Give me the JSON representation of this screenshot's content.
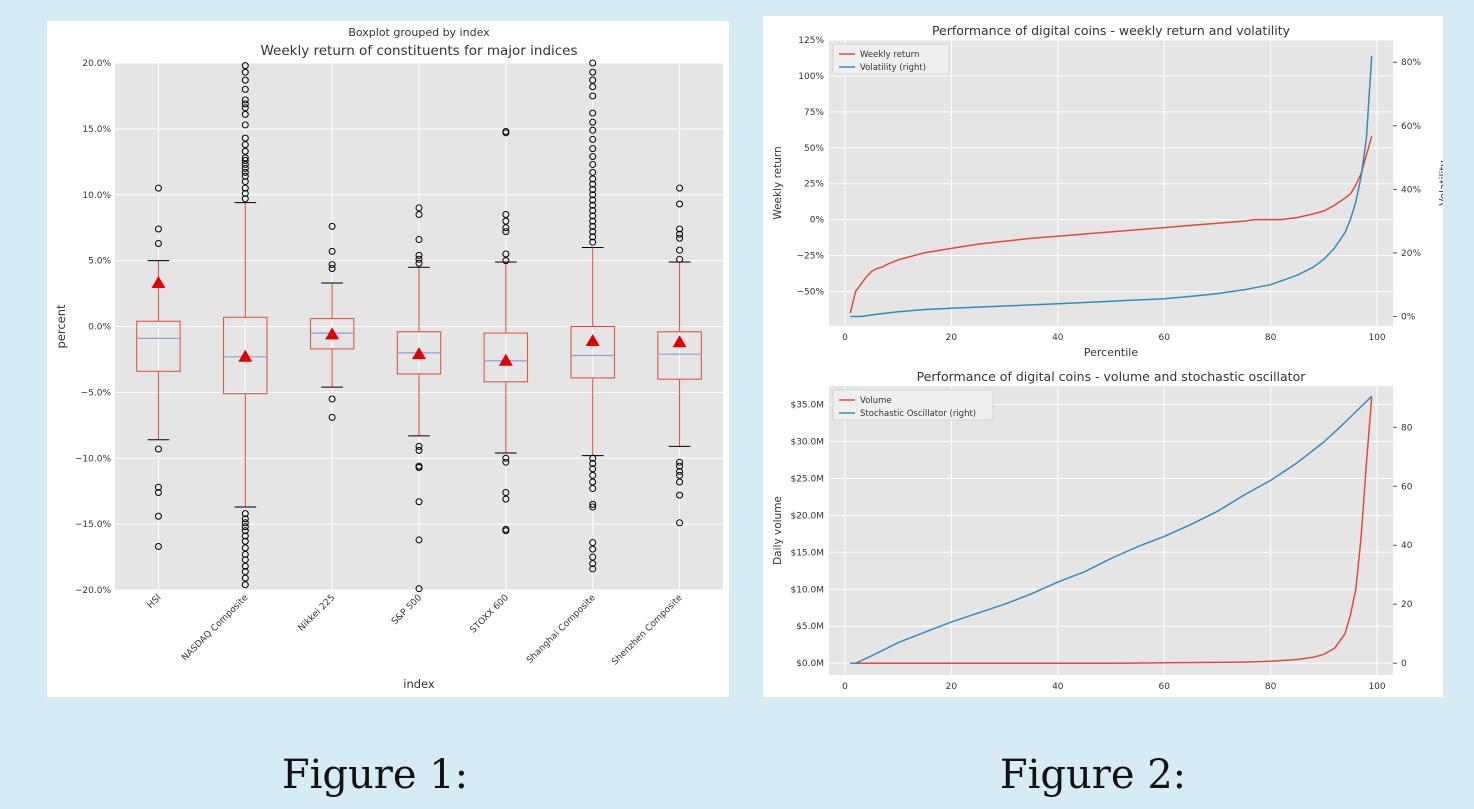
{
  "figures": {
    "figure1_caption": "Figure 1:",
    "figure2_caption": "Figure 2:"
  },
  "colors": {
    "page_bg": "#d6ecf4",
    "plot_bg": "#e5e5e5",
    "grid": "#ffffff",
    "box": "#e24a33",
    "median": "#8fa0dc",
    "mean": "#e00000",
    "orange": "#e24a33",
    "blue": "#348abd"
  },
  "chart_data": [
    {
      "type": "boxplot",
      "suptitle": "Boxplot grouped by index",
      "title": "Weekly return of constituents for major indices",
      "xlabel": "index",
      "ylabel": "percent",
      "ylim": [
        -20,
        20
      ],
      "yticks": [
        -20,
        -15,
        -10,
        -5,
        0,
        5,
        10,
        15,
        20
      ],
      "ytick_labels": [
        "−20.0%",
        "−15.0%",
        "−10.0%",
        "−5.0%",
        "0.0%",
        "5.0%",
        "10.0%",
        "15.0%",
        "20.0%"
      ],
      "grid": true,
      "categories": [
        "HSI",
        "NASDAQ Composite",
        "Nikkei 225",
        "S&P 500",
        "STOXX 600",
        "Shanghai Composite",
        "Shenzhen Composite"
      ],
      "boxes": [
        {
          "q1": -3.4,
          "median": -0.9,
          "q3": 0.4,
          "mean": 3.3,
          "whisker_low": -8.6,
          "whisker_high": 5.0,
          "outliers": [
            10.5,
            7.4,
            6.3,
            -9.3,
            -12.2,
            -12.6,
            -14.4,
            -16.7
          ]
        },
        {
          "q1": -5.1,
          "median": -2.3,
          "q3": 0.7,
          "mean": -2.3,
          "whisker_low": -13.7,
          "whisker_high": 9.4,
          "outliers": [
            19.8,
            19.3,
            18.7,
            18.0,
            17.2,
            16.9,
            16.6,
            16.1,
            15.3,
            14.3,
            13.8,
            13.3,
            12.8,
            12.6,
            12.3,
            12.0,
            11.7,
            11.4,
            11.0,
            10.5,
            10.1,
            9.7,
            -14.2,
            -14.6,
            -14.9,
            -15.2,
            -15.5,
            -15.9,
            -16.3,
            -16.8,
            -17.3,
            -17.7,
            -18.2,
            -18.6,
            -19.1,
            -19.6
          ]
        },
        {
          "q1": -1.7,
          "median": -0.5,
          "q3": 0.6,
          "mean": -0.6,
          "whisker_low": -4.6,
          "whisker_high": 3.3,
          "outliers": [
            7.6,
            5.7,
            4.7,
            4.4,
            -5.5,
            -6.9
          ]
        },
        {
          "q1": -3.6,
          "median": -2.0,
          "q3": -0.4,
          "mean": -2.1,
          "whisker_low": -8.3,
          "whisker_high": 4.5,
          "outliers": [
            9.0,
            8.5,
            6.6,
            5.4,
            5.1,
            4.8,
            -9.1,
            -9.4,
            -10.6,
            -10.7,
            -13.3,
            -16.2,
            -19.9
          ]
        },
        {
          "q1": -4.2,
          "median": -2.6,
          "q3": -0.5,
          "mean": -2.6,
          "whisker_low": -9.6,
          "whisker_high": 4.9,
          "outliers": [
            14.8,
            14.7,
            8.5,
            8.0,
            7.5,
            7.2,
            5.5,
            5.0,
            -10.0,
            -10.3,
            -12.6,
            -13.1,
            -15.4,
            -15.5
          ]
        },
        {
          "q1": -3.9,
          "median": -2.2,
          "q3": 0.0,
          "mean": -1.1,
          "whisker_low": -9.8,
          "whisker_high": 6.0,
          "outliers": [
            20.0,
            19.3,
            18.7,
            18.2,
            17.5,
            16.2,
            15.5,
            14.9,
            14.2,
            13.5,
            12.9,
            12.3,
            11.7,
            11.2,
            10.8,
            10.4,
            10.0,
            9.6,
            9.2,
            8.8,
            8.4,
            8.0,
            7.6,
            7.2,
            6.8,
            6.4,
            -10.0,
            -10.4,
            -10.8,
            -11.3,
            -11.8,
            -12.3,
            -13.5,
            -13.7,
            -16.4,
            -16.9,
            -17.5,
            -18.0,
            -18.4
          ]
        },
        {
          "q1": -4.0,
          "median": -2.1,
          "q3": -0.4,
          "mean": -1.2,
          "whisker_low": -9.1,
          "whisker_high": 4.9,
          "outliers": [
            10.5,
            9.3,
            7.4,
            7.0,
            6.7,
            5.8,
            5.1,
            -10.3,
            -10.6,
            -11.0,
            -11.3,
            -11.8,
            -12.8,
            -14.9
          ]
        }
      ]
    },
    {
      "type": "line",
      "title": "Performance of digital coins - weekly return and volatility",
      "xlabel": "Percentile",
      "ylabel": "Weekly return",
      "y2label": "Volatility",
      "xlim": [
        -3,
        103
      ],
      "xticks": [
        0,
        20,
        40,
        60,
        80,
        100
      ],
      "ylim": [
        -74,
        125
      ],
      "yticks": [
        -50,
        -25,
        0,
        25,
        50,
        75,
        100,
        125
      ],
      "ytick_labels": [
        "−50%",
        "−25%",
        "0%",
        "25%",
        "50%",
        "75%",
        "100%",
        "125%"
      ],
      "y2lim": [
        -3,
        87
      ],
      "y2ticks": [
        0,
        20,
        40,
        60,
        80
      ],
      "y2tick_labels": [
        "0%",
        "20%",
        "40%",
        "60%",
        "80%"
      ],
      "legend_position": "top-left",
      "grid": true,
      "series": [
        {
          "name": "Weekly return",
          "axis": "left",
          "color": "#e24a33",
          "x": [
            1,
            2,
            3,
            4,
            5,
            6,
            7,
            8,
            10,
            12,
            15,
            20,
            25,
            30,
            35,
            40,
            45,
            50,
            55,
            60,
            65,
            70,
            75,
            77,
            80,
            82,
            85,
            88,
            90,
            92,
            94,
            95,
            96,
            97,
            98,
            99
          ],
          "y": [
            -65,
            -50,
            -45,
            -40,
            -36,
            -34,
            -33,
            -31,
            -28,
            -26,
            -23,
            -20,
            -17,
            -15,
            -13,
            -11.5,
            -10,
            -8.5,
            -7,
            -5.5,
            -4,
            -2.5,
            -1,
            0,
            0,
            0,
            1.5,
            4,
            6,
            10,
            15,
            18,
            24,
            32,
            45,
            58
          ]
        },
        {
          "name": "Volatility (right)",
          "axis": "right",
          "color": "#348abd",
          "x": [
            1,
            3,
            5,
            10,
            15,
            20,
            30,
            40,
            50,
            60,
            65,
            70,
            75,
            80,
            85,
            88,
            90,
            92,
            94,
            95,
            96,
            97,
            98,
            99
          ],
          "y": [
            0,
            0,
            0.5,
            1.5,
            2.2,
            2.6,
            3.3,
            4.0,
            4.8,
            5.6,
            6.3,
            7.2,
            8.4,
            10.0,
            13.0,
            15.5,
            18.0,
            21.5,
            26.5,
            30.5,
            36,
            44,
            56,
            82
          ]
        }
      ]
    },
    {
      "type": "line",
      "title": "Performance of digital coins - volume and stochastic oscillator",
      "xlabel": "",
      "ylabel": "Daily volume",
      "xlim": [
        -3,
        103
      ],
      "xticks": [
        0,
        20,
        40,
        60,
        80,
        100
      ],
      "ylim": [
        -1.6,
        37.5
      ],
      "yticks": [
        0,
        5,
        10,
        15,
        20,
        25,
        30,
        35
      ],
      "ytick_labels": [
        "$0.0M",
        "$5.0M",
        "$10.0M",
        "$15.0M",
        "$20.0M",
        "$25.0M",
        "$30.0M",
        "$35.0M"
      ],
      "y2lim": [
        -4,
        94
      ],
      "y2ticks": [
        0,
        20,
        40,
        60,
        80
      ],
      "y2tick_labels": [
        "0",
        "20",
        "40",
        "60",
        "80"
      ],
      "legend_position": "top-left",
      "grid": true,
      "series": [
        {
          "name": "Volume",
          "axis": "left",
          "color": "#e24a33",
          "x": [
            1,
            10,
            20,
            30,
            40,
            50,
            60,
            70,
            75,
            80,
            85,
            88,
            90,
            92,
            94,
            95,
            96,
            97,
            98,
            99
          ],
          "y": [
            0,
            0,
            0,
            0,
            0,
            0,
            0.05,
            0.1,
            0.15,
            0.25,
            0.5,
            0.8,
            1.2,
            2.0,
            4.0,
            6.5,
            10.0,
            17.0,
            27.0,
            36.0
          ]
        },
        {
          "name": "Stochastic Oscillator (right)",
          "axis": "right",
          "color": "#348abd",
          "x": [
            1,
            2,
            5,
            10,
            15,
            20,
            25,
            30,
            35,
            40,
            45,
            50,
            55,
            60,
            65,
            70,
            75,
            80,
            85,
            90,
            93,
            95,
            97,
            99
          ],
          "y": [
            0,
            0,
            2.5,
            7,
            10.5,
            14,
            17,
            20,
            23.5,
            27.5,
            31,
            35.5,
            39.5,
            43,
            47,
            51.5,
            57,
            62,
            68,
            75,
            80,
            83.5,
            87,
            90.5
          ]
        }
      ]
    }
  ]
}
